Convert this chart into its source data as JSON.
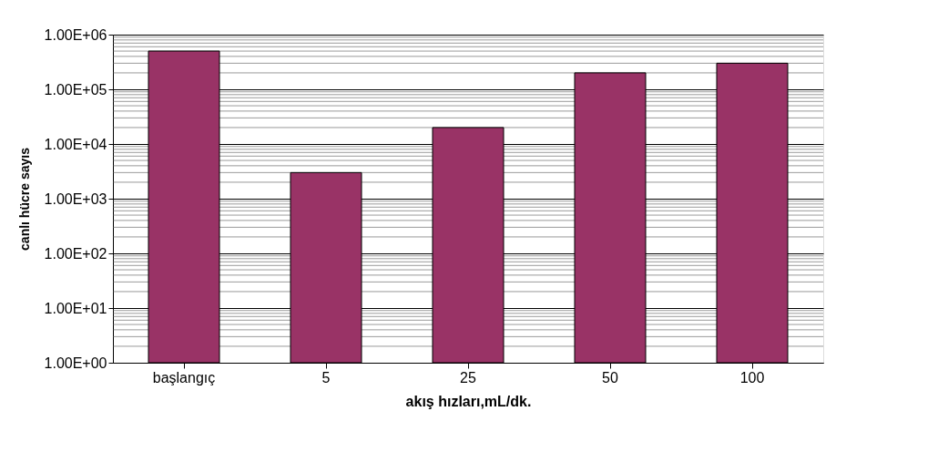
{
  "chart_data": {
    "type": "bar",
    "xlabel": "akış hızları,mL/dk.",
    "ylabel": "canlı hücre sayıs",
    "categories": [
      "başlangıç",
      "5",
      "25",
      "50",
      "100"
    ],
    "values": [
      500000,
      3000,
      20000,
      200000,
      300000
    ],
    "color": "#993366",
    "log": true,
    "ylim": [
      1,
      1000000
    ],
    "yticks": [
      {
        "value": 1,
        "label": "1.00E+00"
      },
      {
        "value": 10,
        "label": "1.00E+01"
      },
      {
        "value": 100,
        "label": "1.00E+02"
      },
      {
        "value": 1000,
        "label": "1.00E+03"
      },
      {
        "value": 10000,
        "label": "1.00E+04"
      },
      {
        "value": 100000,
        "label": "1.00E+05"
      },
      {
        "value": 1000000,
        "label": "1.00E+06"
      }
    ],
    "grid": true
  }
}
